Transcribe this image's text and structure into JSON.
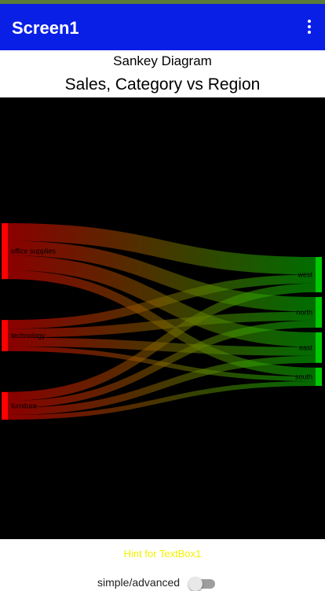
{
  "app_bar": {
    "title": "Screen1",
    "menu_icon": "overflow-menu-icon"
  },
  "diagram_label": "Sankey Diagram",
  "chart_title": "Sales, Category vs Region",
  "chart_data": {
    "type": "sankey",
    "title": "Sales, Category vs Region",
    "sources": [
      "office supplies",
      "technology",
      "furniture"
    ],
    "targets": [
      "west",
      "north",
      "east",
      "south"
    ],
    "links": [
      {
        "source": "office supplies",
        "target": "west",
        "value": 30
      },
      {
        "source": "office supplies",
        "target": "north",
        "value": 25
      },
      {
        "source": "office supplies",
        "target": "east",
        "value": 25
      },
      {
        "source": "office supplies",
        "target": "south",
        "value": 15
      },
      {
        "source": "technology",
        "target": "west",
        "value": 15
      },
      {
        "source": "technology",
        "target": "north",
        "value": 15
      },
      {
        "source": "technology",
        "target": "east",
        "value": 15
      },
      {
        "source": "technology",
        "target": "south",
        "value": 8
      },
      {
        "source": "furniture",
        "target": "west",
        "value": 15
      },
      {
        "source": "furniture",
        "target": "north",
        "value": 12
      },
      {
        "source": "furniture",
        "target": "east",
        "value": 12
      },
      {
        "source": "furniture",
        "target": "south",
        "value": 8
      }
    ],
    "colors": {
      "source": "#ff0000",
      "target": "#00c800",
      "background": "#000000"
    }
  },
  "hint_text": "Hint for TextBox1",
  "toggle": {
    "label": "simple/advanced",
    "checked": false
  }
}
